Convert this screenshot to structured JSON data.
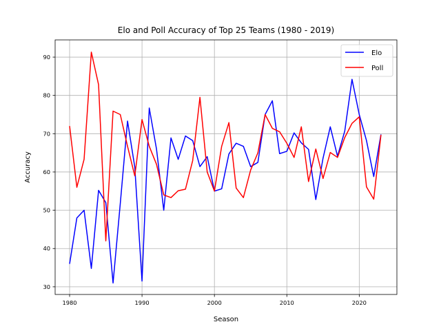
{
  "chart_data": {
    "type": "line",
    "title": "Elo and Poll Accuracy of Top 25 Teams (1980 - 2019)",
    "xlabel": "Season",
    "ylabel": "Accuracy",
    "xlim": [
      1978,
      2025.2
    ],
    "ylim": [
      28,
      94.5
    ],
    "xticks": [
      1980,
      1990,
      2000,
      2010,
      2020
    ],
    "yticks": [
      30,
      40,
      50,
      60,
      70,
      80,
      90
    ],
    "grid": true,
    "legend_position": "top-right",
    "x": [
      1980,
      1981,
      1982,
      1983,
      1984,
      1985,
      1986,
      1987,
      1988,
      1989,
      1990,
      1991,
      1992,
      1993,
      1994,
      1995,
      1996,
      1997,
      1998,
      1999,
      2000,
      2001,
      2002,
      2003,
      2004,
      2005,
      2006,
      2007,
      2008,
      2009,
      2010,
      2011,
      2012,
      2013,
      2014,
      2015,
      2016,
      2017,
      2018,
      2019,
      2020,
      2021,
      2022,
      2023
    ],
    "series": [
      {
        "name": "Elo",
        "color": "#0000ff",
        "values": [
          36.0,
          48.0,
          50.0,
          34.8,
          55.2,
          52.0,
          31.0,
          51.8,
          73.3,
          61.3,
          31.5,
          76.7,
          66.0,
          50.0,
          68.9,
          63.3,
          69.4,
          68.2,
          61.4,
          64.0,
          55.0,
          55.6,
          64.7,
          67.5,
          66.7,
          61.4,
          62.5,
          75.0,
          78.6,
          64.8,
          65.4,
          70.2,
          67.6,
          65.9,
          52.8,
          63.6,
          71.8,
          64.1,
          70.7,
          84.2,
          75.0,
          68.2,
          58.8,
          69.8
        ]
      },
      {
        "name": "Poll",
        "color": "#ff0000",
        "values": [
          72.0,
          56.0,
          63.3,
          91.3,
          82.8,
          42.0,
          75.9,
          75.0,
          66.7,
          59.0,
          73.7,
          66.7,
          62.0,
          54.0,
          53.3,
          55.1,
          55.5,
          63.0,
          79.5,
          60.0,
          55.0,
          66.7,
          72.9,
          55.8,
          53.3,
          60.5,
          65.0,
          75.0,
          71.4,
          70.5,
          67.5,
          63.8,
          71.8,
          57.5,
          66.0,
          58.3,
          65.1,
          63.8,
          69.0,
          72.7,
          74.4,
          56.1,
          52.9,
          69.7
        ]
      }
    ]
  }
}
